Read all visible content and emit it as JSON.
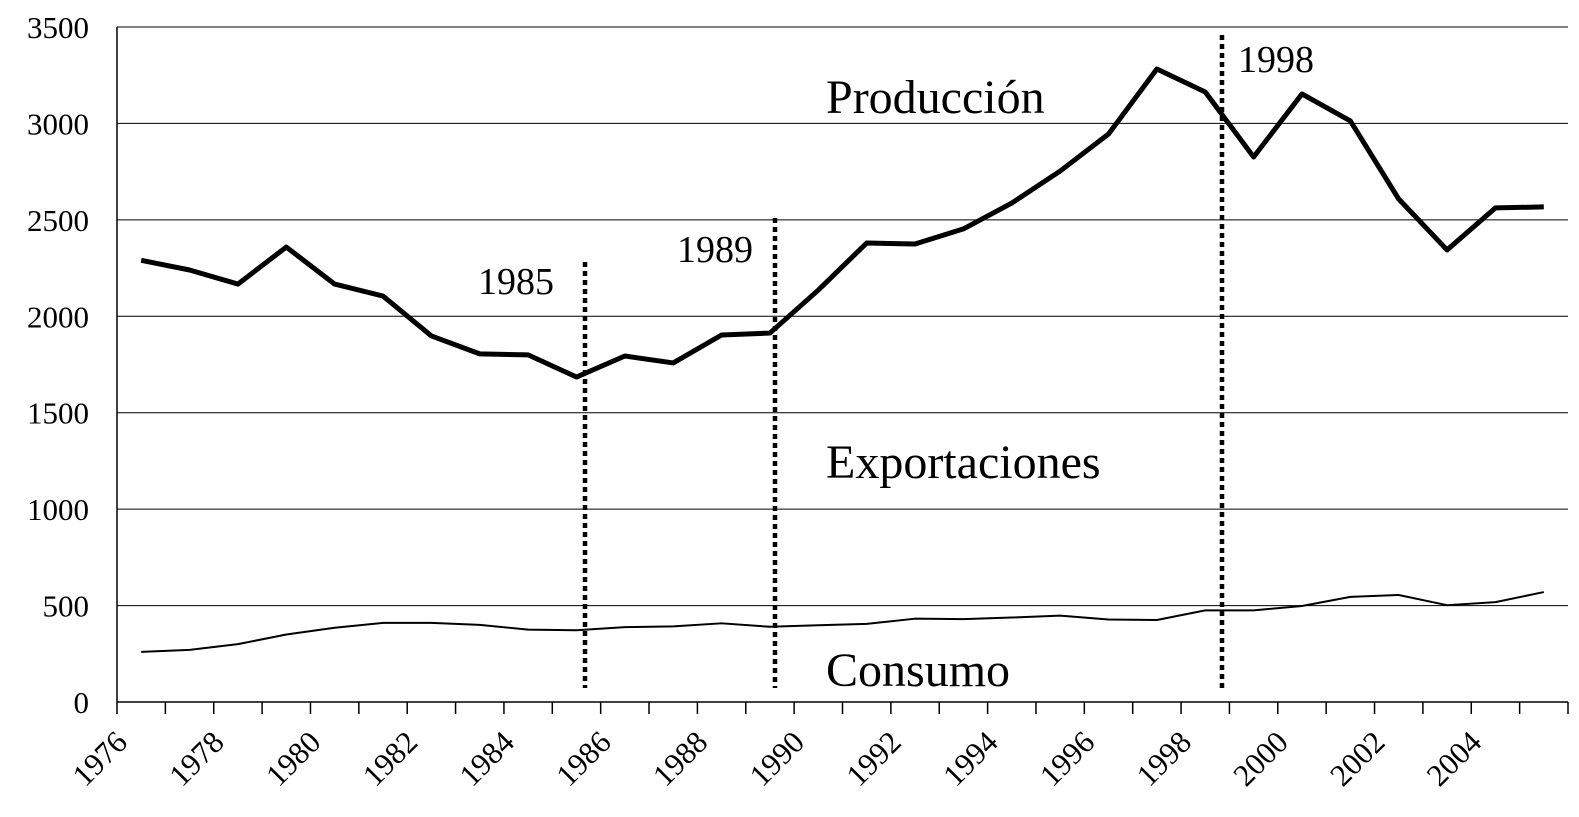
{
  "chart_data": {
    "type": "line",
    "categories": [
      "1976",
      null,
      "1978",
      null,
      "1980",
      null,
      "1982",
      null,
      "1984",
      null,
      "1986",
      null,
      "1988",
      null,
      "1990",
      null,
      "1992",
      null,
      "1994",
      null,
      "1996",
      null,
      "1998",
      null,
      "2000",
      null,
      "2002",
      null,
      "2004",
      null
    ],
    "series": [
      {
        "color": "#000000",
        "values": [
          2290,
          2240,
          2167,
          2359,
          2167,
          2105,
          1898,
          1805,
          1800,
          1685,
          1794,
          1758,
          1903,
          1913,
          2136,
          2380,
          2375,
          2453,
          2587,
          2753,
          2945,
          3282,
          3163,
          2826,
          3153,
          3013,
          2608,
          2344,
          2562,
          2567
        ]
      },
      {
        "color": "#000000",
        "values": [
          260,
          270,
          300,
          350,
          385,
          410,
          410,
          400,
          375,
          372,
          388,
          392,
          408,
          390,
          398,
          405,
          432,
          430,
          438,
          448,
          428,
          425,
          475,
          475,
          498,
          545,
          555,
          502,
          518,
          570
        ]
      }
    ],
    "annotations": [
      "Producción",
      "Exportaciones",
      "Consumo",
      "1985",
      "1989",
      "1998"
    ],
    "ylim": [
      0,
      3500
    ],
    "yticks": [
      0,
      500,
      1000,
      1500,
      2000,
      2500,
      3000,
      3500
    ],
    "grid": true
  }
}
